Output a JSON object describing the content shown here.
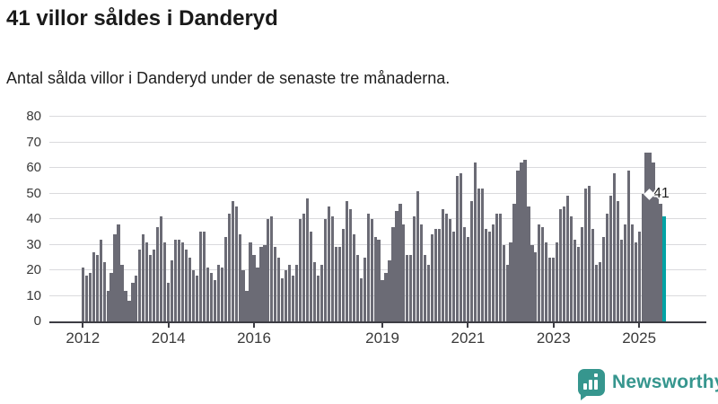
{
  "title": "41 villor såldes i Danderyd",
  "subtitle": "Antal sålda villor i Danderyd under de senaste tre månaderna.",
  "annotation": {
    "label": "41"
  },
  "logo": {
    "text": "Newsworthy"
  },
  "colors": {
    "bar": "#6b6b75",
    "highlight": "#00a2a4",
    "grid": "#dadadd",
    "axis": "#3d3d44",
    "tick_label": "#3a3a3a",
    "logo": "#36968e",
    "title": "#1a1a1a"
  },
  "chart_data": {
    "type": "bar",
    "title": "41 villor såldes i Danderyd",
    "subtitle": "Antal sålda villor i Danderyd under de senaste tre månaderna.",
    "x_start": "2012-01",
    "x_end": "2025-08",
    "x_frequency": "monthly",
    "x_tick_years": [
      2012,
      2014,
      2016,
      2019,
      2021,
      2023,
      2025
    ],
    "ylim": [
      0,
      80
    ],
    "yticks": [
      0,
      10,
      20,
      30,
      40,
      50,
      60,
      70,
      80
    ],
    "grid": true,
    "legend": false,
    "highlight_last_value": 41,
    "values": [
      21,
      18,
      19,
      27,
      26,
      32,
      23,
      12,
      19,
      34,
      38,
      22,
      12,
      8,
      15,
      18,
      28,
      34,
      31,
      26,
      28,
      37,
      41,
      31,
      15,
      24,
      32,
      32,
      31,
      28,
      25,
      20,
      18,
      35,
      35,
      21,
      19,
      16,
      22,
      21,
      33,
      42,
      47,
      45,
      34,
      20,
      12,
      31,
      26,
      21,
      29,
      30,
      40,
      41,
      29,
      25,
      17,
      20,
      22,
      18,
      22,
      40,
      42,
      48,
      35,
      23,
      18,
      22,
      40,
      45,
      41,
      29,
      29,
      36,
      47,
      44,
      34,
      26,
      17,
      25,
      42,
      40,
      33,
      32,
      16,
      19,
      24,
      37,
      43,
      46,
      38,
      26,
      26,
      41,
      51,
      38,
      26,
      22,
      34,
      36,
      36,
      44,
      42,
      40,
      35,
      57,
      58,
      37,
      33,
      47,
      62,
      52,
      52,
      36,
      35,
      38,
      42,
      42,
      30,
      22,
      31,
      46,
      59,
      62,
      63,
      45,
      30,
      27,
      38,
      37,
      31,
      25,
      25,
      31,
      44,
      45,
      49,
      41,
      32,
      29,
      37,
      52,
      53,
      36,
      22,
      23,
      33,
      42,
      49,
      58,
      47,
      32,
      38,
      59,
      38,
      31,
      35,
      50,
      66,
      66,
      62,
      51,
      46,
      41
    ]
  }
}
